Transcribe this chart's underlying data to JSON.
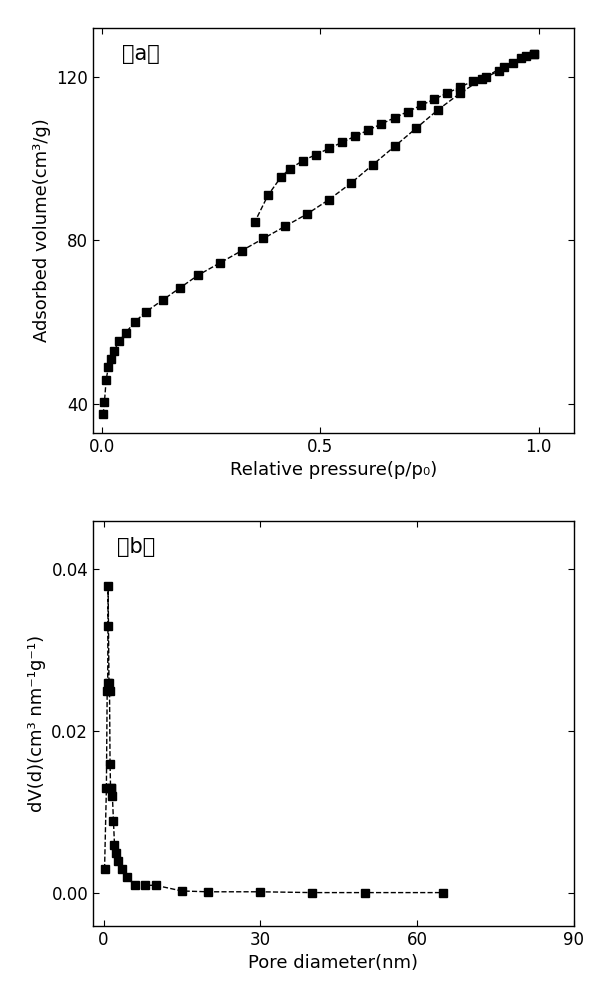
{
  "plot_a": {
    "label": "（a）",
    "adsorption_x": [
      0.003,
      0.006,
      0.01,
      0.015,
      0.02,
      0.028,
      0.04,
      0.055,
      0.075,
      0.1,
      0.14,
      0.18,
      0.22,
      0.27,
      0.32,
      0.37,
      0.42,
      0.47,
      0.52,
      0.57,
      0.62,
      0.67,
      0.72,
      0.77,
      0.82,
      0.87,
      0.92,
      0.96,
      0.99
    ],
    "adsorption_y": [
      37.5,
      40.5,
      46.0,
      49.0,
      51.0,
      53.0,
      55.5,
      57.5,
      60.0,
      62.5,
      65.5,
      68.5,
      71.5,
      74.5,
      77.5,
      80.5,
      83.5,
      86.5,
      90.0,
      94.0,
      98.5,
      103.0,
      107.5,
      112.0,
      116.0,
      119.5,
      122.5,
      124.5,
      125.5
    ],
    "desorption_x": [
      0.99,
      0.97,
      0.94,
      0.91,
      0.88,
      0.85,
      0.82,
      0.79,
      0.76,
      0.73,
      0.7,
      0.67,
      0.64,
      0.61,
      0.58,
      0.55,
      0.52,
      0.49,
      0.46,
      0.43,
      0.41,
      0.38,
      0.35
    ],
    "desorption_y": [
      125.5,
      125.0,
      123.5,
      121.5,
      120.0,
      119.0,
      117.5,
      116.0,
      114.5,
      113.0,
      111.5,
      110.0,
      108.5,
      107.0,
      105.5,
      104.0,
      102.5,
      101.0,
      99.5,
      97.5,
      95.5,
      91.0,
      84.5
    ],
    "xlabel": "Relative pressure(p/p₀)",
    "ylabel": "Adsorbed volume(cm³/g)",
    "xlim": [
      -0.02,
      1.08
    ],
    "ylim": [
      33,
      132
    ],
    "xticks": [
      0.0,
      0.5,
      1.0
    ],
    "yticks": [
      40,
      80,
      120
    ]
  },
  "plot_b": {
    "label": "（b）",
    "x": [
      0.2,
      0.55,
      0.7,
      0.8,
      0.88,
      0.95,
      1.05,
      1.15,
      1.25,
      1.35,
      1.5,
      1.7,
      1.9,
      2.1,
      2.4,
      2.8,
      3.5,
      4.5,
      6.0,
      8.0,
      10.0,
      15.0,
      20.0,
      30.0,
      40.0,
      50.0,
      65.0
    ],
    "y": [
      0.003,
      0.013,
      0.025,
      0.026,
      0.038,
      0.033,
      0.026,
      0.025,
      0.016,
      0.013,
      0.013,
      0.012,
      0.009,
      0.006,
      0.005,
      0.004,
      0.003,
      0.002,
      0.001,
      0.001,
      0.001,
      0.0003,
      0.0002,
      0.0002,
      0.0001,
      0.0001,
      0.0001
    ],
    "xlabel": "Pore diameter(nm)",
    "ylabel": "dV(d)(cm³ nm⁻¹g⁻¹)",
    "xlim": [
      -2,
      90
    ],
    "ylim": [
      -0.004,
      0.046
    ],
    "xticks": [
      0,
      30,
      60,
      90
    ],
    "yticks": [
      0.0,
      0.02,
      0.04
    ]
  },
  "line_color": "#000000",
  "marker": "s",
  "markersize": 5.5,
  "linestyle": "--",
  "bg_color": "#ffffff",
  "label_fontsize": 13,
  "tick_fontsize": 12,
  "panel_label_fontsize": 15
}
